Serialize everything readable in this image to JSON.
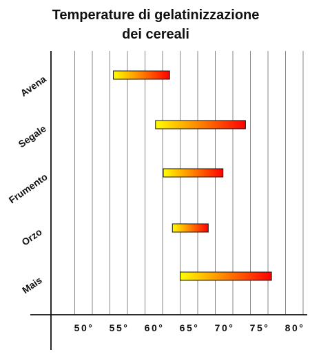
{
  "chart_data": {
    "type": "bar",
    "orientation": "horizontal-range",
    "title_lines": [
      "Temperature di gelatinizzazione",
      "dei cereali"
    ],
    "categories": [
      "Avena",
      "Segale",
      "Frumento",
      "Orzo",
      "Mais"
    ],
    "ranges": [
      {
        "category": "Avena",
        "start": 53,
        "end": 61
      },
      {
        "category": "Segale",
        "start": 59,
        "end": 71.8
      },
      {
        "category": "Frumento",
        "start": 60.1,
        "end": 68.6
      },
      {
        "category": "Orzo",
        "start": 61.4,
        "end": 66.5
      },
      {
        "category": "Mais",
        "start": 62.5,
        "end": 75.5
      }
    ],
    "x_ticks": [
      50,
      55,
      60,
      65,
      70,
      75,
      80
    ],
    "x_tick_labels": [
      "50°",
      "55°",
      "60°",
      "65°",
      "70°",
      "75°",
      "80°"
    ],
    "xlim": [
      47,
      80
    ],
    "grid_lines_every": 2.5,
    "bar_gradient": [
      "#ffff00",
      "#ff8000",
      "#ff0000"
    ]
  }
}
